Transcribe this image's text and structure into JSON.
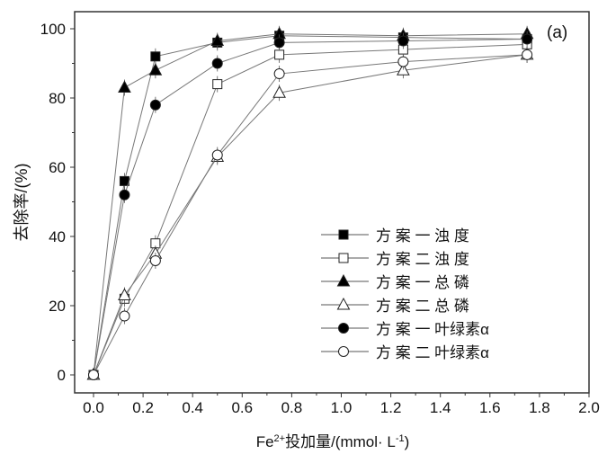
{
  "chart_data": {
    "type": "line",
    "panel_label": "(a)",
    "xlabel": "Fe2+投加量/(mmol· L-1)",
    "xlabel_parts": {
      "base": "Fe",
      "sup": "2+",
      "mid": "投加量/(mmol· L",
      "sup2": "-1",
      "end": ")"
    },
    "ylabel": "去除率/(%)",
    "xlim": [
      0,
      2.0
    ],
    "ylim": [
      0,
      100
    ],
    "xticks": [
      "0.0",
      "0.2",
      "0.4",
      "0.6",
      "0.8",
      "1.0",
      "1.2",
      "1.4",
      "1.6",
      "1.8",
      "2.0"
    ],
    "yticks": [
      "0",
      "20",
      "40",
      "60",
      "80",
      "100"
    ],
    "legend_position": "center-right",
    "x": [
      0,
      0.125,
      0.25,
      0.5,
      0.75,
      1.25,
      1.75
    ],
    "series": [
      {
        "name": "方 案 一 浊 度",
        "marker": "square",
        "filled": true,
        "values": [
          0,
          56,
          92,
          96,
          98,
          97.5,
          97
        ]
      },
      {
        "name": "方 案 二 浊 度",
        "marker": "square",
        "filled": false,
        "values": [
          0,
          22,
          38,
          84,
          92.5,
          94,
          95.5
        ]
      },
      {
        "name": "方 案 一 总 磷",
        "marker": "triangle",
        "filled": true,
        "values": [
          0,
          83,
          88,
          96.5,
          98.5,
          98,
          98.5
        ]
      },
      {
        "name": "方 案 二 总 磷",
        "marker": "triangle",
        "filled": false,
        "values": [
          0,
          23,
          35,
          63,
          81.5,
          88,
          92.5
        ]
      },
      {
        "name": "方 案 一 叶绿素α",
        "marker": "circle",
        "filled": true,
        "values": [
          0,
          52,
          78,
          90,
          96,
          96.5,
          97
        ]
      },
      {
        "name": "方 案 二 叶绿素α",
        "marker": "circle",
        "filled": false,
        "values": [
          0,
          17,
          33,
          63.5,
          87,
          90.5,
          92.5
        ]
      }
    ]
  }
}
